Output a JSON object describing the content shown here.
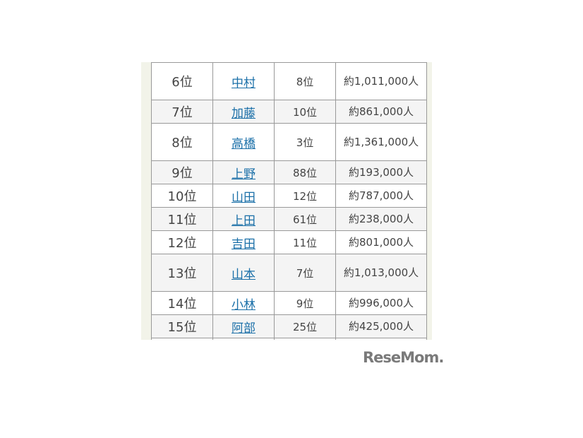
{
  "rows": [
    {
      "rank": "6位",
      "name": "中村",
      "prev": "8位",
      "pop": "約1,011,000人"
    },
    {
      "rank": "7位",
      "name": "加藤",
      "prev": "10位",
      "pop": "約861,000人"
    },
    {
      "rank": "8位",
      "name": "高橋",
      "prev": "3位",
      "pop": "約1,361,000人"
    },
    {
      "rank": "9位",
      "name": "上野",
      "prev": "88位",
      "pop": "約193,000人"
    },
    {
      "rank": "10位",
      "name": "山田",
      "prev": "12位",
      "pop": "約787,000人"
    },
    {
      "rank": "11位",
      "name": "上田",
      "prev": "61位",
      "pop": "約238,000人"
    },
    {
      "rank": "12位",
      "name": "吉田",
      "prev": "11位",
      "pop": "約801,000人"
    },
    {
      "rank": "13位",
      "name": "山本",
      "prev": "7位",
      "pop": "約1,013,000人"
    },
    {
      "rank": "14位",
      "name": "小林",
      "prev": "9位",
      "pop": "約996,000人"
    },
    {
      "rank": "15位",
      "name": "阿部",
      "prev": "25位",
      "pop": "約425,000人"
    }
  ],
  "logo": "ReseMom.",
  "colors": {
    "link": "#1a6fa8",
    "panel": "#f2f3e9",
    "border": "#999999"
  }
}
